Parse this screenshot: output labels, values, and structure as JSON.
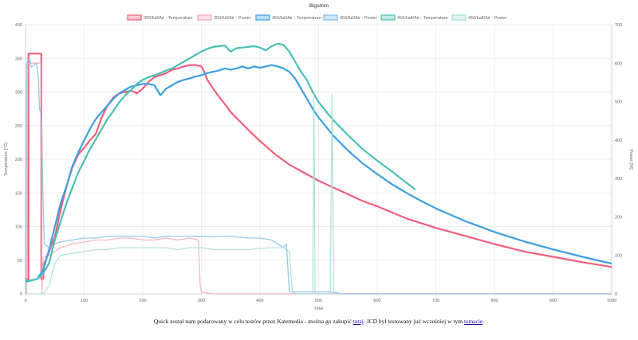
{
  "caption": {
    "before": "Quick został nam podarowany w celu testów przez Katemedia - można go zakupić ",
    "link1": "tutaj",
    "middle": ". JCD był testowany już wcześniej w tym ",
    "link2": "temacie",
    "after": "."
  },
  "chart_data": {
    "type": "line",
    "title": "Bigstren",
    "xlabel": "Time",
    "ylabel": "Temperature [°C]",
    "y2label": "Power [W]",
    "xlim": [
      0,
      1000
    ],
    "ylim": [
      0,
      400
    ],
    "y2lim": [
      0,
      700
    ],
    "xticks": [
      0,
      100,
      200,
      300,
      400,
      500,
      600,
      700,
      800,
      900,
      1000
    ],
    "yticks": [
      0,
      50,
      100,
      150,
      200,
      250,
      300,
      350,
      400
    ],
    "y2ticks": [
      0,
      100,
      200,
      300,
      400,
      500,
      600,
      700
    ],
    "grid": true,
    "legend": "top",
    "series": [
      {
        "name": "350/full/Air - Temperature",
        "axis": "left",
        "color": "#f0607c",
        "points": [
          [
            0,
            22
          ],
          [
            5,
            22
          ],
          [
            5,
            357
          ],
          [
            27,
            357
          ],
          [
            27,
            22
          ],
          [
            30,
            22
          ],
          [
            32,
            45
          ],
          [
            40,
            62
          ],
          [
            50,
            85
          ],
          [
            60,
            125
          ],
          [
            70,
            160
          ],
          [
            80,
            188
          ],
          [
            90,
            207
          ],
          [
            100,
            217
          ],
          [
            110,
            228
          ],
          [
            120,
            238
          ],
          [
            130,
            262
          ],
          [
            140,
            280
          ],
          [
            150,
            292
          ],
          [
            160,
            298
          ],
          [
            170,
            300
          ],
          [
            180,
            302
          ],
          [
            190,
            298
          ],
          [
            200,
            305
          ],
          [
            210,
            315
          ],
          [
            220,
            322
          ],
          [
            230,
            325
          ],
          [
            240,
            328
          ],
          [
            250,
            333
          ],
          [
            260,
            335
          ],
          [
            270,
            338
          ],
          [
            280,
            340
          ],
          [
            290,
            340
          ],
          [
            300,
            338
          ],
          [
            305,
            330
          ],
          [
            310,
            318
          ],
          [
            320,
            305
          ],
          [
            330,
            293
          ],
          [
            340,
            282
          ],
          [
            350,
            270
          ],
          [
            375,
            248
          ],
          [
            400,
            227
          ],
          [
            425,
            208
          ],
          [
            450,
            192
          ],
          [
            475,
            180
          ],
          [
            500,
            168
          ],
          [
            525,
            158
          ],
          [
            550,
            148
          ],
          [
            575,
            138
          ],
          [
            600,
            130
          ],
          [
            650,
            112
          ],
          [
            700,
            98
          ],
          [
            750,
            86
          ],
          [
            800,
            74
          ],
          [
            850,
            63
          ],
          [
            900,
            55
          ],
          [
            950,
            47
          ],
          [
            1000,
            40
          ]
        ]
      },
      {
        "name": "350/full/Air - Power",
        "axis": "right",
        "color": "#f5a6b8",
        "points": [
          [
            0,
            0
          ],
          [
            2,
            0
          ],
          [
            4,
            600
          ],
          [
            26,
            600
          ],
          [
            28,
            0
          ],
          [
            30,
            95
          ],
          [
            40,
            100
          ],
          [
            60,
            120
          ],
          [
            80,
            130
          ],
          [
            100,
            135
          ],
          [
            120,
            140
          ],
          [
            140,
            140
          ],
          [
            160,
            145
          ],
          [
            180,
            145
          ],
          [
            200,
            140
          ],
          [
            220,
            140
          ],
          [
            240,
            145
          ],
          [
            260,
            140
          ],
          [
            280,
            145
          ],
          [
            295,
            140
          ],
          [
            298,
            20
          ],
          [
            300,
            5
          ],
          [
            320,
            0
          ],
          [
            1000,
            0
          ]
        ]
      },
      {
        "name": "450/full/Air - Temperature",
        "axis": "left",
        "color": "#3d9fe0",
        "points": [
          [
            0,
            18
          ],
          [
            10,
            20
          ],
          [
            20,
            22
          ],
          [
            30,
            35
          ],
          [
            40,
            65
          ],
          [
            50,
            100
          ],
          [
            60,
            135
          ],
          [
            70,
            160
          ],
          [
            80,
            190
          ],
          [
            90,
            210
          ],
          [
            100,
            228
          ],
          [
            110,
            245
          ],
          [
            120,
            260
          ],
          [
            130,
            270
          ],
          [
            140,
            280
          ],
          [
            150,
            290
          ],
          [
            160,
            298
          ],
          [
            170,
            303
          ],
          [
            180,
            308
          ],
          [
            190,
            310
          ],
          [
            200,
            312
          ],
          [
            210,
            312
          ],
          [
            220,
            310
          ],
          [
            230,
            295
          ],
          [
            240,
            305
          ],
          [
            250,
            310
          ],
          [
            260,
            315
          ],
          [
            270,
            318
          ],
          [
            280,
            320
          ],
          [
            290,
            323
          ],
          [
            300,
            325
          ],
          [
            310,
            328
          ],
          [
            320,
            330
          ],
          [
            330,
            332
          ],
          [
            340,
            335
          ],
          [
            350,
            333
          ],
          [
            360,
            335
          ],
          [
            370,
            338
          ],
          [
            380,
            335
          ],
          [
            390,
            338
          ],
          [
            400,
            336
          ],
          [
            410,
            338
          ],
          [
            420,
            340
          ],
          [
            430,
            338
          ],
          [
            440,
            335
          ],
          [
            450,
            330
          ],
          [
            460,
            320
          ],
          [
            470,
            305
          ],
          [
            480,
            290
          ],
          [
            490,
            275
          ],
          [
            500,
            262
          ],
          [
            525,
            235
          ],
          [
            550,
            213
          ],
          [
            575,
            194
          ],
          [
            600,
            178
          ],
          [
            625,
            163
          ],
          [
            650,
            150
          ],
          [
            675,
            138
          ],
          [
            700,
            127
          ],
          [
            750,
            108
          ],
          [
            800,
            92
          ],
          [
            850,
            78
          ],
          [
            900,
            66
          ],
          [
            950,
            55
          ],
          [
            1000,
            45
          ]
        ]
      },
      {
        "name": "450/full/Air - Power",
        "axis": "right",
        "color": "#7cbcec",
        "points": [
          [
            0,
            0
          ],
          [
            2,
            600
          ],
          [
            6,
            610
          ],
          [
            10,
            590
          ],
          [
            14,
            595
          ],
          [
            18,
            600
          ],
          [
            20,
            590
          ],
          [
            22,
            560
          ],
          [
            24,
            480
          ],
          [
            26,
            470
          ],
          [
            28,
            420
          ],
          [
            30,
            240
          ],
          [
            32,
            130
          ],
          [
            40,
            120
          ],
          [
            50,
            130
          ],
          [
            60,
            135
          ],
          [
            80,
            140
          ],
          [
            100,
            145
          ],
          [
            120,
            145
          ],
          [
            140,
            150
          ],
          [
            160,
            150
          ],
          [
            180,
            150
          ],
          [
            200,
            150
          ],
          [
            220,
            145
          ],
          [
            240,
            150
          ],
          [
            260,
            150
          ],
          [
            280,
            150
          ],
          [
            300,
            150
          ],
          [
            320,
            148
          ],
          [
            340,
            150
          ],
          [
            360,
            148
          ],
          [
            380,
            145
          ],
          [
            400,
            145
          ],
          [
            420,
            140
          ],
          [
            440,
            120
          ],
          [
            445,
            130
          ],
          [
            450,
            5
          ],
          [
            470,
            5
          ],
          [
            490,
            5
          ],
          [
            500,
            5
          ],
          [
            520,
            5
          ],
          [
            530,
            3
          ],
          [
            540,
            0
          ],
          [
            1000,
            0
          ]
        ]
      },
      {
        "name": "450/half/Air - Temperature",
        "axis": "left",
        "color": "#4bbfb5",
        "points": [
          [
            0,
            20
          ],
          [
            10,
            20
          ],
          [
            20,
            22
          ],
          [
            30,
            30
          ],
          [
            40,
            45
          ],
          [
            50,
            80
          ],
          [
            60,
            108
          ],
          [
            70,
            135
          ],
          [
            80,
            158
          ],
          [
            90,
            180
          ],
          [
            100,
            198
          ],
          [
            110,
            215
          ],
          [
            120,
            230
          ],
          [
            130,
            245
          ],
          [
            140,
            260
          ],
          [
            150,
            272
          ],
          [
            160,
            285
          ],
          [
            170,
            295
          ],
          [
            180,
            303
          ],
          [
            190,
            312
          ],
          [
            200,
            318
          ],
          [
            210,
            322
          ],
          [
            220,
            325
          ],
          [
            230,
            328
          ],
          [
            240,
            332
          ],
          [
            250,
            335
          ],
          [
            260,
            340
          ],
          [
            270,
            345
          ],
          [
            280,
            350
          ],
          [
            290,
            355
          ],
          [
            300,
            360
          ],
          [
            310,
            364
          ],
          [
            320,
            367
          ],
          [
            330,
            368
          ],
          [
            340,
            369
          ],
          [
            350,
            360
          ],
          [
            360,
            365
          ],
          [
            370,
            366
          ],
          [
            380,
            367
          ],
          [
            390,
            368
          ],
          [
            400,
            366
          ],
          [
            410,
            362
          ],
          [
            420,
            368
          ],
          [
            430,
            372
          ],
          [
            440,
            370
          ],
          [
            450,
            360
          ],
          [
            460,
            345
          ],
          [
            470,
            330
          ],
          [
            480,
            318
          ],
          [
            490,
            300
          ],
          [
            500,
            285
          ],
          [
            525,
            258
          ],
          [
            550,
            236
          ],
          [
            575,
            215
          ],
          [
            600,
            198
          ],
          [
            625,
            182
          ],
          [
            650,
            165
          ],
          [
            665,
            155
          ]
        ]
      },
      {
        "name": "450/half/Air - Power",
        "axis": "right",
        "color": "#a0dcd6",
        "points": [
          [
            0,
            0
          ],
          [
            5,
            0
          ],
          [
            10,
            0
          ],
          [
            20,
            0
          ],
          [
            30,
            0
          ],
          [
            40,
            20
          ],
          [
            50,
            80
          ],
          [
            60,
            100
          ],
          [
            80,
            105
          ],
          [
            100,
            110
          ],
          [
            120,
            115
          ],
          [
            140,
            115
          ],
          [
            160,
            120
          ],
          [
            180,
            120
          ],
          [
            200,
            120
          ],
          [
            220,
            120
          ],
          [
            240,
            120
          ],
          [
            260,
            115
          ],
          [
            280,
            120
          ],
          [
            300,
            120
          ],
          [
            320,
            115
          ],
          [
            340,
            115
          ],
          [
            360,
            115
          ],
          [
            380,
            115
          ],
          [
            400,
            118
          ],
          [
            420,
            120
          ],
          [
            440,
            120
          ],
          [
            450,
            110
          ],
          [
            455,
            10
          ],
          [
            460,
            0
          ],
          [
            485,
            0
          ],
          [
            490,
            0
          ],
          [
            492,
            520
          ],
          [
            494,
            0
          ],
          [
            520,
            0
          ],
          [
            523,
            520
          ],
          [
            526,
            0
          ],
          [
            530,
            0
          ],
          [
            540,
            0
          ]
        ]
      }
    ]
  }
}
